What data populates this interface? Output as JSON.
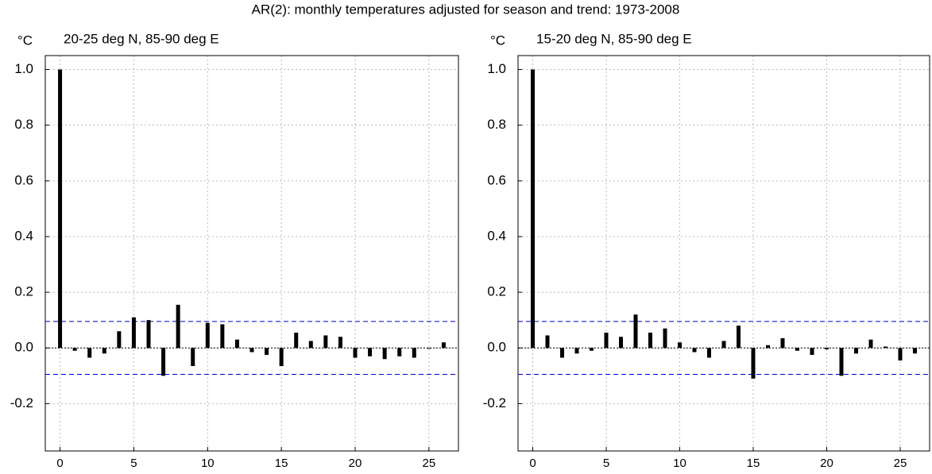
{
  "title": "AR(2): monthly temperatures adjusted for season and trend: 1973-2008",
  "chart_data": [
    {
      "type": "bar",
      "subtitle": "20-25 deg N, 85-90 deg E",
      "y_unit": "°C",
      "x": [
        0,
        1,
        2,
        3,
        4,
        5,
        6,
        7,
        8,
        9,
        10,
        11,
        12,
        13,
        14,
        15,
        16,
        17,
        18,
        19,
        20,
        21,
        22,
        23,
        24,
        25,
        26
      ],
      "values": [
        1.0,
        -0.01,
        -0.035,
        -0.02,
        0.06,
        0.11,
        0.1,
        -0.1,
        0.155,
        -0.065,
        0.09,
        0.085,
        0.03,
        -0.015,
        -0.025,
        -0.065,
        0.055,
        0.025,
        0.045,
        0.04,
        -0.035,
        -0.03,
        -0.04,
        -0.03,
        -0.035,
        0.0,
        0.02
      ],
      "color": "#000000",
      "bounds": [
        0.095,
        -0.095
      ],
      "bounds_color": "#0000cc",
      "xlim": [
        -1,
        27
      ],
      "xticks": [
        0,
        5,
        10,
        15,
        20,
        25
      ],
      "ylim": [
        -0.37,
        1.05
      ],
      "yticks": [
        -0.2,
        {
          "value": 0,
          "label": "0.0"
        },
        0.2,
        0.4,
        0.6,
        0.8,
        {
          "value": 1,
          "label": "1.0"
        }
      ],
      "grid": true
    },
    {
      "type": "bar",
      "subtitle": "15-20 deg N, 85-90 deg E",
      "y_unit": "°C",
      "x": [
        0,
        1,
        2,
        3,
        4,
        5,
        6,
        7,
        8,
        9,
        10,
        11,
        12,
        13,
        14,
        15,
        16,
        17,
        18,
        19,
        20,
        21,
        22,
        23,
        24,
        25,
        26
      ],
      "values": [
        1.0,
        0.045,
        -0.035,
        -0.02,
        -0.01,
        0.055,
        0.04,
        0.12,
        0.055,
        0.07,
        0.02,
        -0.015,
        -0.035,
        0.025,
        0.08,
        -0.11,
        0.01,
        0.035,
        -0.01,
        -0.025,
        -0.005,
        -0.1,
        -0.02,
        0.03,
        0.005,
        -0.045,
        -0.02
      ],
      "color": "#000000",
      "bounds": [
        0.095,
        -0.095
      ],
      "bounds_color": "#0000cc",
      "xlim": [
        -1,
        27
      ],
      "xticks": [
        0,
        5,
        10,
        15,
        20,
        25
      ],
      "ylim": [
        -0.37,
        1.05
      ],
      "yticks": [
        -0.2,
        {
          "value": 0,
          "label": "0.0"
        },
        0.2,
        0.4,
        0.6,
        0.8,
        {
          "value": 1,
          "label": "1.0"
        }
      ],
      "grid": true
    }
  ]
}
